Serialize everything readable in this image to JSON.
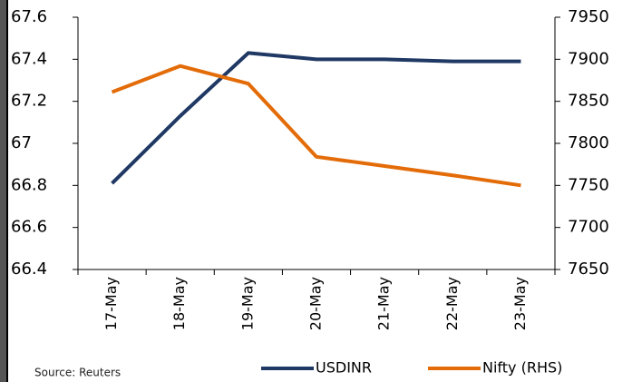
{
  "chart_data": {
    "type": "line",
    "categories": [
      "17-May",
      "18-May",
      "19-May",
      "20-May",
      "21-May",
      "22-May",
      "23-May"
    ],
    "series": [
      {
        "name": "USDINR",
        "color": "#1f3864",
        "values": [
          66.81,
          67.13,
          67.43,
          67.4,
          67.4,
          67.39,
          67.39
        ]
      },
      {
        "name": "Nifty (RHS)",
        "color": "#e36c09",
        "axis": "y2",
        "values": [
          7861,
          7892,
          7871,
          7784,
          7773,
          7762,
          7750
        ]
      }
    ],
    "ylim": [
      66.4,
      67.6
    ],
    "yticks": [
      66.4,
      66.6,
      66.8,
      67,
      67.2,
      67.4,
      67.6
    ],
    "y2lim": [
      7650,
      7950
    ],
    "y2ticks": [
      7650,
      7700,
      7750,
      7800,
      7850,
      7900,
      7950
    ],
    "legend": "bottom",
    "source": "Source: Reuters"
  }
}
